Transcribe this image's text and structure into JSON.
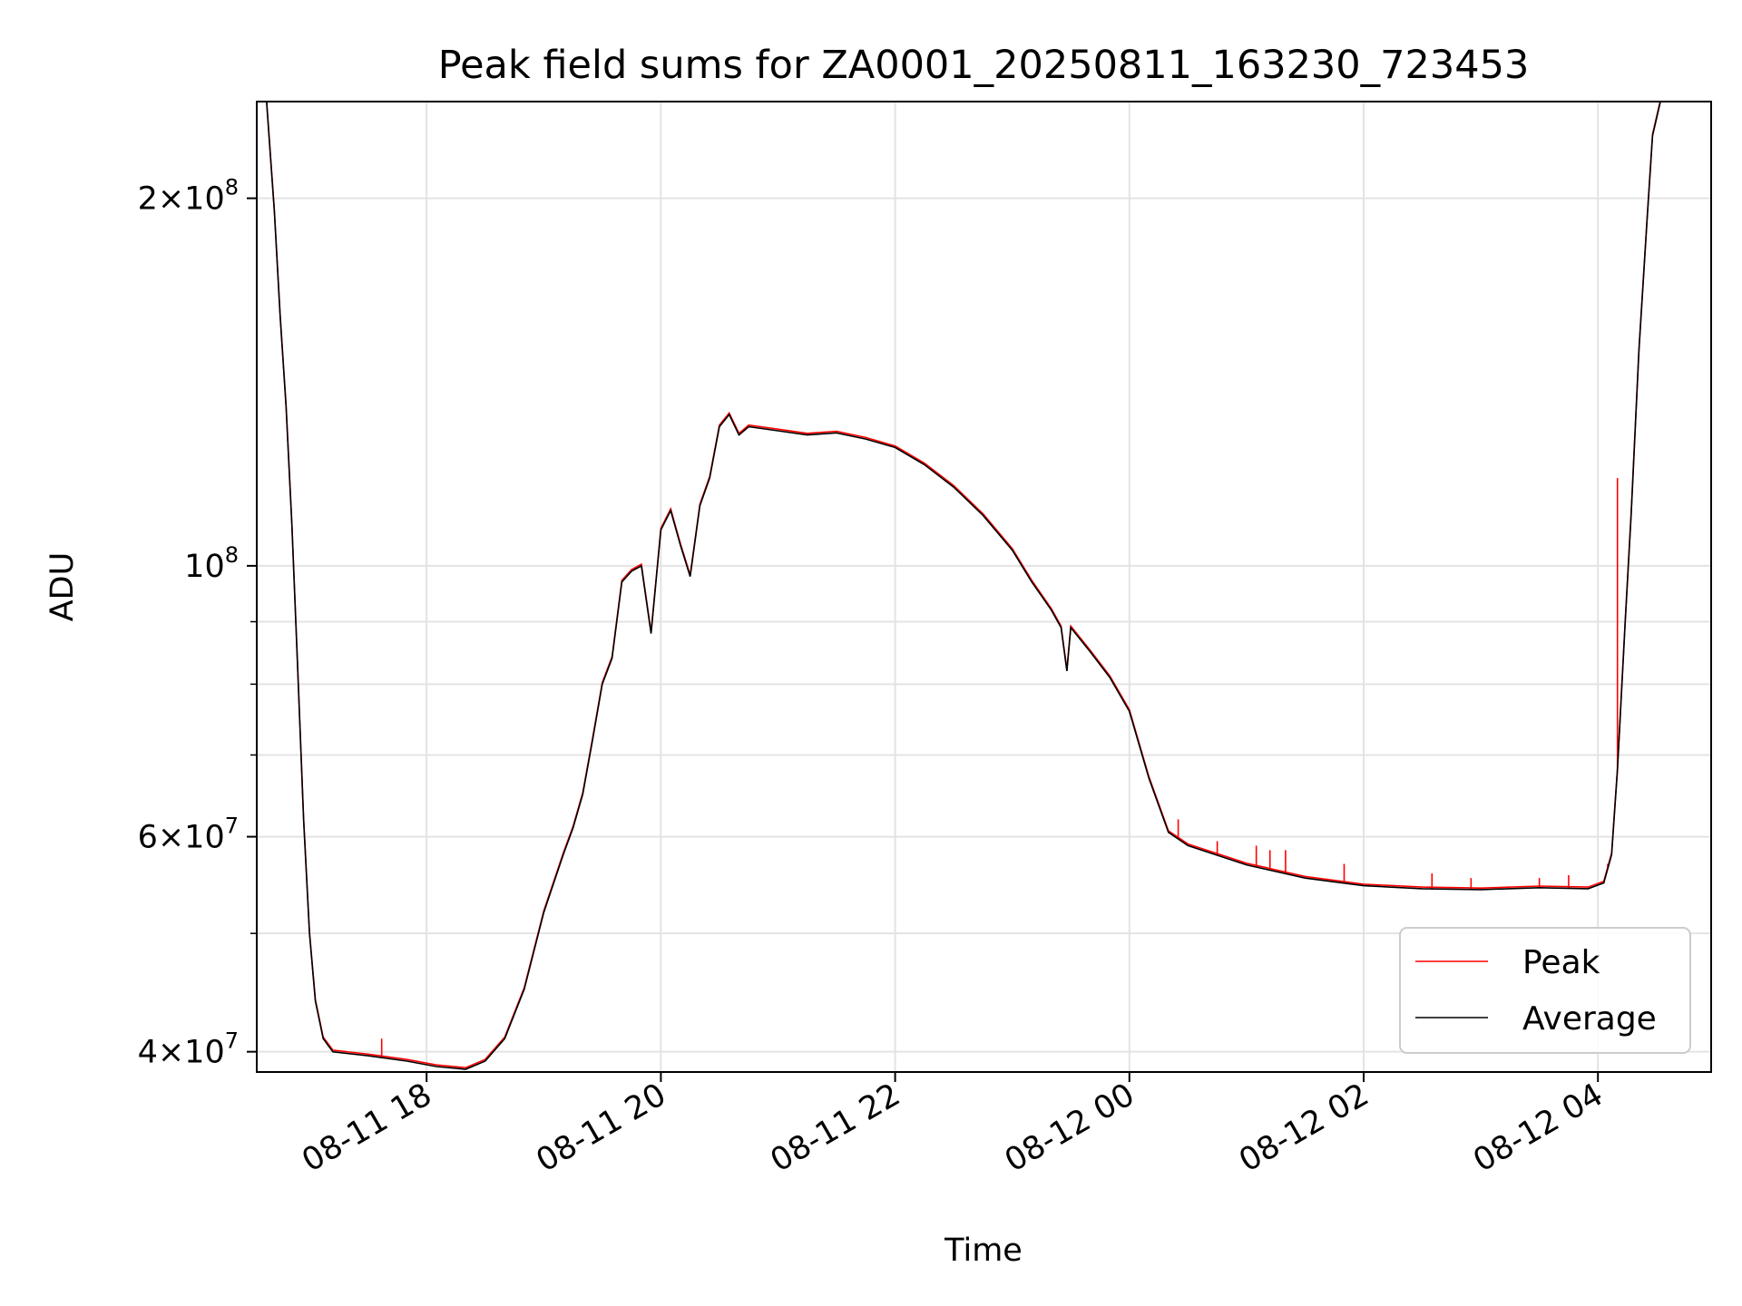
{
  "chart_data": {
    "type": "line",
    "title": "Peak field sums for ZA0001_20250811_163230_723453",
    "xlabel": "Time",
    "ylabel": "ADU",
    "yscale": "log",
    "grid": true,
    "legend_position": "lower-right",
    "xlim": [
      "2025-08-11 16:33",
      "2025-08-12 04:58"
    ],
    "ylim": [
      38500000,
      240000000
    ],
    "x_ticks": [
      "08-11 18",
      "08-11 20",
      "08-11 22",
      "08-12 00",
      "08-12 02",
      "08-12 04"
    ],
    "y_ticks": [
      {
        "value": 40000000,
        "mantissa": "4",
        "exp": "7"
      },
      {
        "value": 60000000,
        "mantissa": "6",
        "exp": "7"
      },
      {
        "value": 100000000,
        "mantissa": "",
        "exp": "8"
      },
      {
        "value": 200000000,
        "mantissa": "2",
        "exp": "8"
      }
    ],
    "y_minor_ticks": [
      50000000,
      70000000,
      80000000,
      90000000
    ],
    "series": [
      {
        "name": "Average",
        "color": "#000000",
        "points": [
          [
            "2025-08-11 16:38",
            240000000
          ],
          [
            "2025-08-11 16:42",
            195000000
          ],
          [
            "2025-08-11 16:45",
            160000000
          ],
          [
            "2025-08-11 16:48",
            135000000
          ],
          [
            "2025-08-11 16:51",
            108000000
          ],
          [
            "2025-08-11 16:54",
            82000000
          ],
          [
            "2025-08-11 16:57",
            62000000
          ],
          [
            "2025-08-11 17:00",
            50000000
          ],
          [
            "2025-08-11 17:03",
            44000000
          ],
          [
            "2025-08-11 17:07",
            41000000
          ],
          [
            "2025-08-11 17:12",
            40000000
          ],
          [
            "2025-08-11 17:30",
            39700000
          ],
          [
            "2025-08-11 17:50",
            39300000
          ],
          [
            "2025-08-11 18:05",
            38900000
          ],
          [
            "2025-08-11 18:20",
            38700000
          ],
          [
            "2025-08-11 18:30",
            39300000
          ],
          [
            "2025-08-11 18:40",
            41000000
          ],
          [
            "2025-08-11 18:50",
            45000000
          ],
          [
            "2025-08-11 19:00",
            52000000
          ],
          [
            "2025-08-11 19:10",
            58000000
          ],
          [
            "2025-08-11 19:15",
            61000000
          ],
          [
            "2025-08-11 19:20",
            65000000
          ],
          [
            "2025-08-11 19:25",
            72000000
          ],
          [
            "2025-08-11 19:30",
            80000000
          ],
          [
            "2025-08-11 19:35",
            84000000
          ],
          [
            "2025-08-11 19:40",
            97000000
          ],
          [
            "2025-08-11 19:45",
            99000000
          ],
          [
            "2025-08-11 19:50",
            100000000
          ],
          [
            "2025-08-11 19:55",
            88000000
          ],
          [
            "2025-08-11 20:00",
            107000000
          ],
          [
            "2025-08-11 20:05",
            111000000
          ],
          [
            "2025-08-11 20:10",
            104000000
          ],
          [
            "2025-08-11 20:15",
            98000000
          ],
          [
            "2025-08-11 20:20",
            112000000
          ],
          [
            "2025-08-11 20:25",
            118000000
          ],
          [
            "2025-08-11 20:30",
            130000000
          ],
          [
            "2025-08-11 20:35",
            133000000
          ],
          [
            "2025-08-11 20:40",
            128000000
          ],
          [
            "2025-08-11 20:45",
            130000000
          ],
          [
            "2025-08-11 21:00",
            129000000
          ],
          [
            "2025-08-11 21:15",
            128000000
          ],
          [
            "2025-08-11 21:30",
            128500000
          ],
          [
            "2025-08-11 21:45",
            127000000
          ],
          [
            "2025-08-11 22:00",
            125000000
          ],
          [
            "2025-08-11 22:15",
            121000000
          ],
          [
            "2025-08-11 22:30",
            116000000
          ],
          [
            "2025-08-11 22:45",
            110000000
          ],
          [
            "2025-08-11 23:00",
            103000000
          ],
          [
            "2025-08-11 23:10",
            97000000
          ],
          [
            "2025-08-11 23:20",
            92000000
          ],
          [
            "2025-08-11 23:25",
            89000000
          ],
          [
            "2025-08-11 23:28",
            82000000
          ],
          [
            "2025-08-11 23:30",
            89000000
          ],
          [
            "2025-08-11 23:40",
            85000000
          ],
          [
            "2025-08-11 23:50",
            81000000
          ],
          [
            "2025-08-12 00:00",
            76000000
          ],
          [
            "2025-08-12 00:10",
            67000000
          ],
          [
            "2025-08-12 00:20",
            60500000
          ],
          [
            "2025-08-12 00:30",
            59000000
          ],
          [
            "2025-08-12 01:00",
            56900000
          ],
          [
            "2025-08-12 01:30",
            55500000
          ],
          [
            "2025-08-12 02:00",
            54700000
          ],
          [
            "2025-08-12 02:30",
            54400000
          ],
          [
            "2025-08-12 03:00",
            54300000
          ],
          [
            "2025-08-12 03:30",
            54500000
          ],
          [
            "2025-08-12 03:55",
            54400000
          ],
          [
            "2025-08-12 04:03",
            55000000
          ],
          [
            "2025-08-12 04:07",
            58000000
          ],
          [
            "2025-08-12 04:10",
            68000000
          ],
          [
            "2025-08-12 04:14",
            90000000
          ],
          [
            "2025-08-12 04:17",
            110000000
          ],
          [
            "2025-08-12 04:21",
            150000000
          ],
          [
            "2025-08-12 04:25",
            190000000
          ],
          [
            "2025-08-12 04:28",
            225000000
          ],
          [
            "2025-08-12 04:32",
            240000000
          ],
          [
            "2025-08-12 04:37",
            240000000
          ]
        ]
      },
      {
        "name": "Peak",
        "color": "#ff0000",
        "spikes": [
          [
            "2025-08-11 17:37",
            41000000
          ],
          [
            "2025-08-12 00:25",
            62000000
          ],
          [
            "2025-08-12 00:45",
            59500000
          ],
          [
            "2025-08-12 01:05",
            59000000
          ],
          [
            "2025-08-12 01:12",
            58500000
          ],
          [
            "2025-08-12 01:20",
            58500000
          ],
          [
            "2025-08-12 01:50",
            57000000
          ],
          [
            "2025-08-12 02:35",
            56000000
          ],
          [
            "2025-08-12 02:55",
            55500000
          ],
          [
            "2025-08-12 03:30",
            55500000
          ],
          [
            "2025-08-12 03:45",
            55800000
          ],
          [
            "2025-08-12 04:05",
            57000000
          ],
          [
            "2025-08-12 04:10",
            118000000
          ]
        ]
      }
    ]
  }
}
